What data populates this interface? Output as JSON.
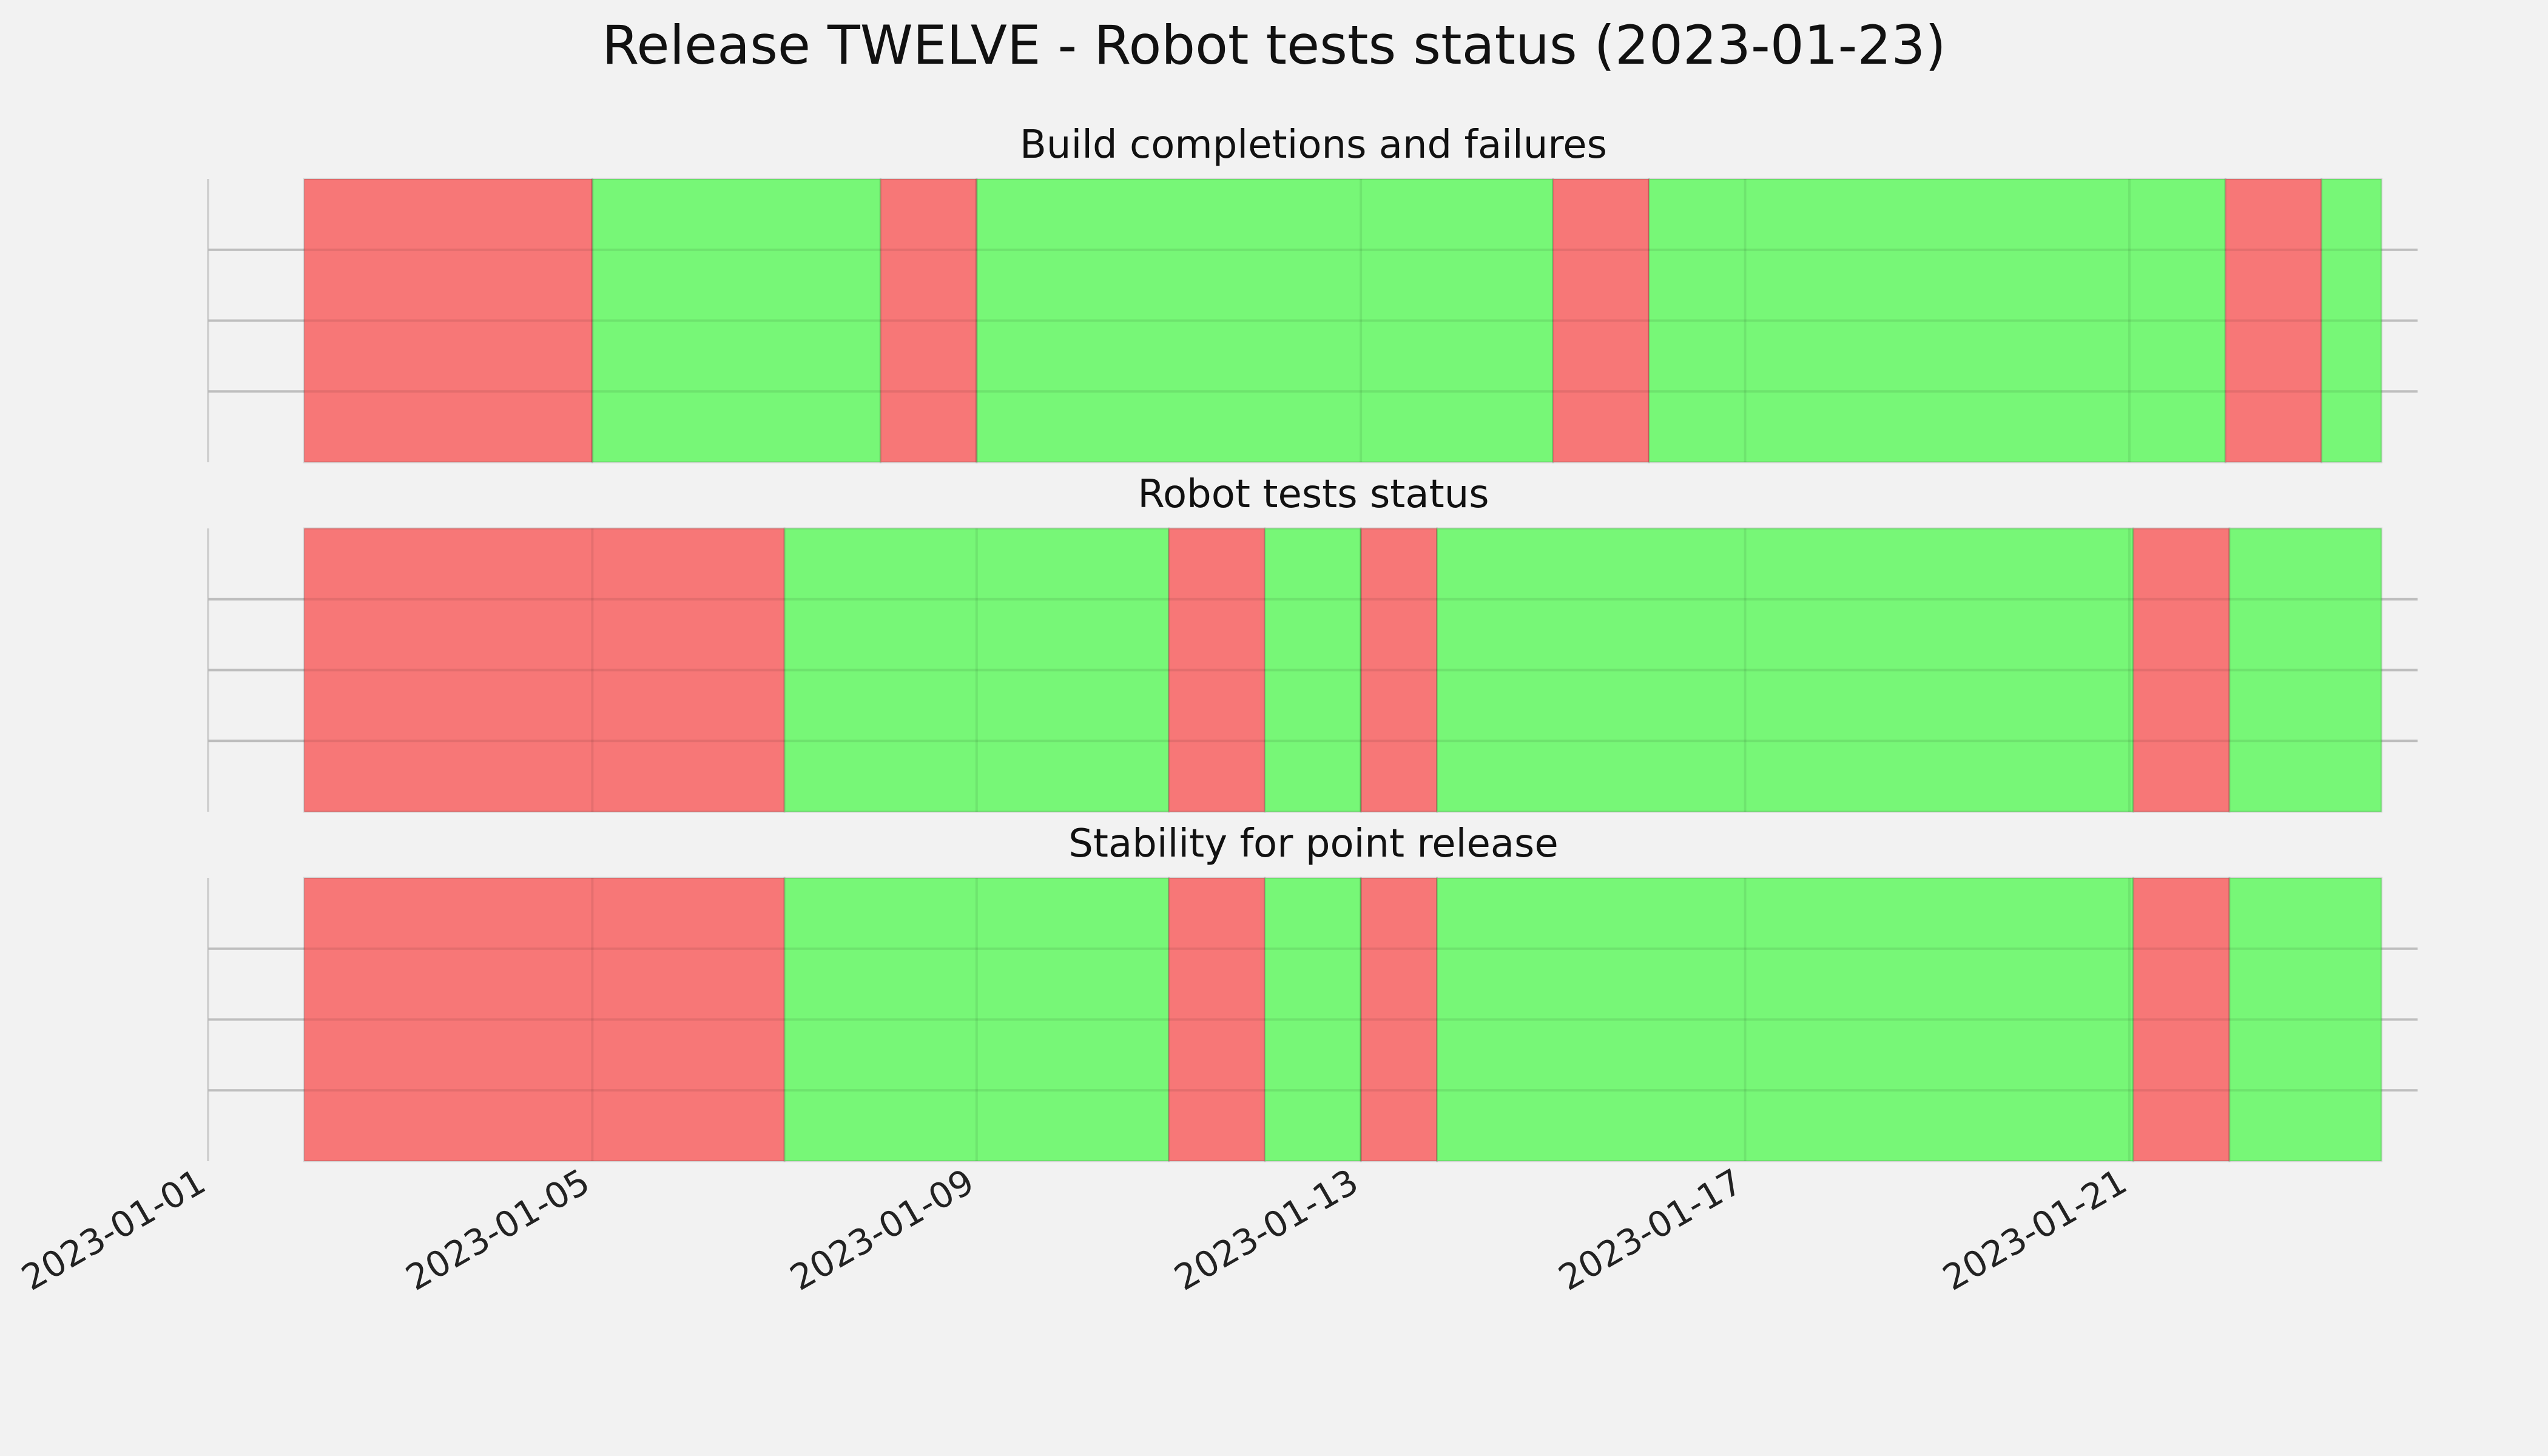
{
  "chart_data": {
    "type": "timeline",
    "title": "Release TWELVE - Robot tests status (2023-01-23)",
    "x_axis": {
      "type": "date",
      "range": [
        "2023-01-01",
        "2023-01-24"
      ],
      "ticks": [
        "2023-01-01",
        "2023-01-05",
        "2023-01-09",
        "2023-01-13",
        "2023-01-17",
        "2023-01-21"
      ]
    },
    "grid": true,
    "colors": {
      "pass": "#77f777",
      "fail": "#f77777",
      "background": "#f2f2f2"
    },
    "panels": [
      {
        "title": "Build completions and failures",
        "segments": [
          {
            "start": "2023-01-02 00:00",
            "end": "2023-01-05 00:00",
            "status": "fail"
          },
          {
            "start": "2023-01-05 00:00",
            "end": "2023-01-08 00:00",
            "status": "pass"
          },
          {
            "start": "2023-01-08 00:00",
            "end": "2023-01-09 00:00",
            "status": "fail"
          },
          {
            "start": "2023-01-09 00:00",
            "end": "2023-01-15 00:00",
            "status": "pass"
          },
          {
            "start": "2023-01-15 00:00",
            "end": "2023-01-16 00:00",
            "status": "fail"
          },
          {
            "start": "2023-01-16 00:00",
            "end": "2023-01-22 00:00",
            "status": "pass"
          },
          {
            "start": "2023-01-22 00:00",
            "end": "2023-01-23 00:00",
            "status": "fail"
          },
          {
            "start": "2023-01-23 00:00",
            "end": "2023-01-23 15:00",
            "status": "pass"
          }
        ]
      },
      {
        "title": "Robot tests status",
        "segments": [
          {
            "start": "2023-01-02 00:00",
            "end": "2023-01-07 00:00",
            "status": "fail"
          },
          {
            "start": "2023-01-07 00:00",
            "end": "2023-01-11 00:00",
            "status": "pass"
          },
          {
            "start": "2023-01-11 00:00",
            "end": "2023-01-12 00:00",
            "status": "fail"
          },
          {
            "start": "2023-01-12 00:00",
            "end": "2023-01-13 00:00",
            "status": "pass"
          },
          {
            "start": "2023-01-13 00:00",
            "end": "2023-01-13 19:00",
            "status": "fail"
          },
          {
            "start": "2023-01-13 19:00",
            "end": "2023-01-21 01:00",
            "status": "pass"
          },
          {
            "start": "2023-01-21 01:00",
            "end": "2023-01-22 01:00",
            "status": "fail"
          },
          {
            "start": "2023-01-22 01:00",
            "end": "2023-01-23 15:00",
            "status": "pass"
          }
        ]
      },
      {
        "title": "Stability for point release",
        "segments": [
          {
            "start": "2023-01-02 00:00",
            "end": "2023-01-07 00:00",
            "status": "fail"
          },
          {
            "start": "2023-01-07 00:00",
            "end": "2023-01-11 00:00",
            "status": "pass"
          },
          {
            "start": "2023-01-11 00:00",
            "end": "2023-01-12 00:00",
            "status": "fail"
          },
          {
            "start": "2023-01-12 00:00",
            "end": "2023-01-13 00:00",
            "status": "pass"
          },
          {
            "start": "2023-01-13 00:00",
            "end": "2023-01-13 19:00",
            "status": "fail"
          },
          {
            "start": "2023-01-13 19:00",
            "end": "2023-01-21 01:00",
            "status": "pass"
          },
          {
            "start": "2023-01-21 01:00",
            "end": "2023-01-22 01:00",
            "status": "fail"
          },
          {
            "start": "2023-01-22 01:00",
            "end": "2023-01-23 15:00",
            "status": "pass"
          }
        ]
      }
    ]
  }
}
